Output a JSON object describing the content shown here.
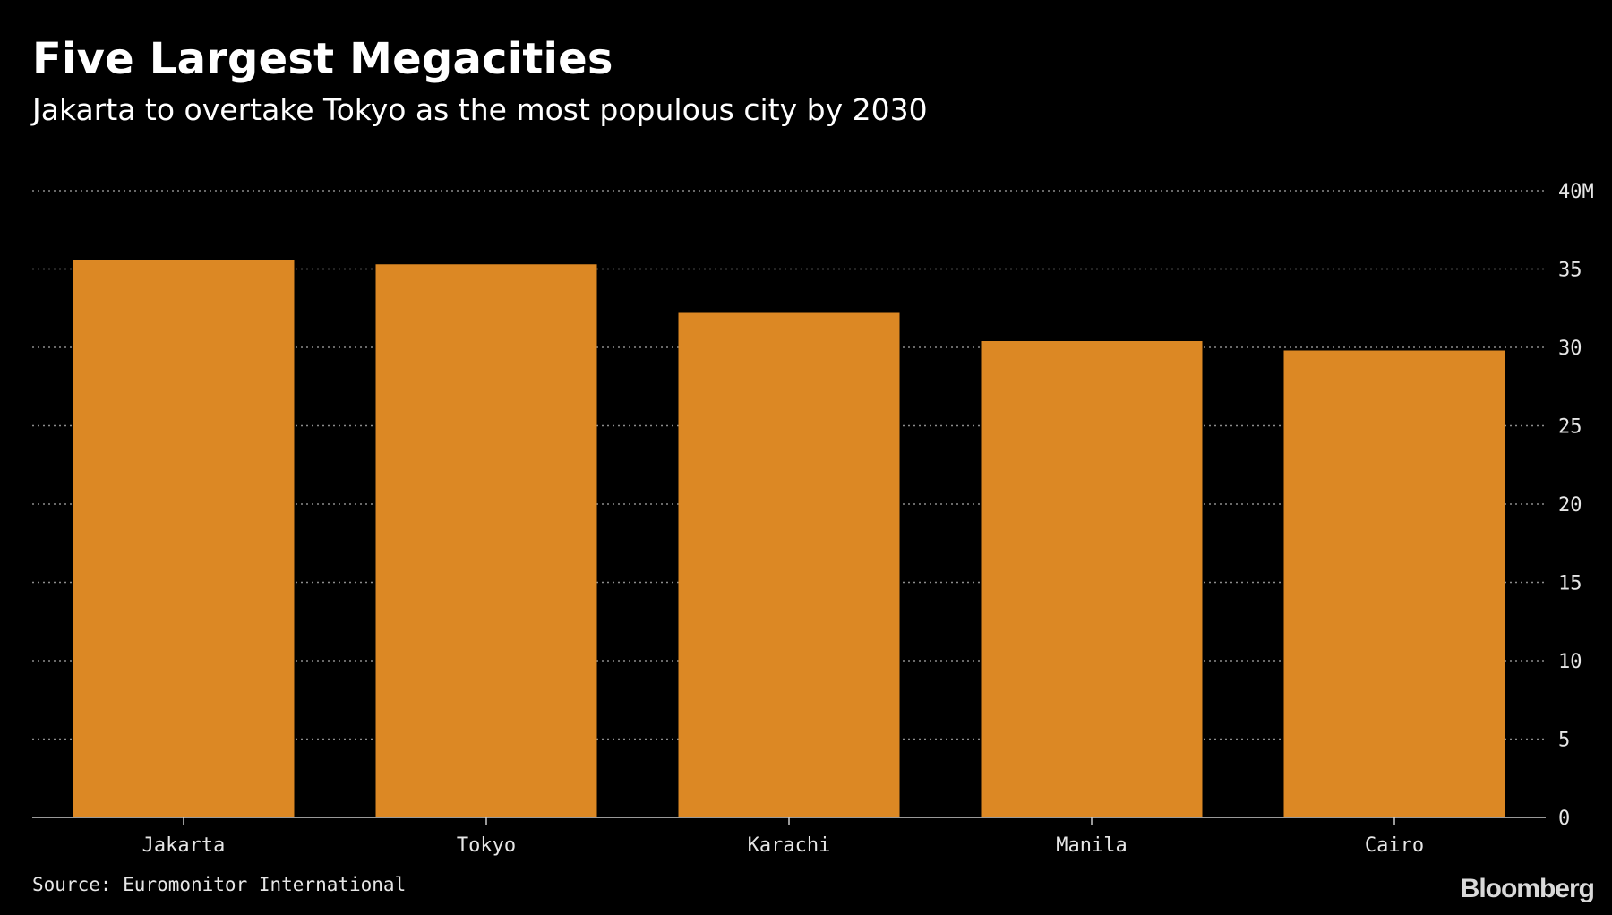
{
  "title": "Five Largest Megacities",
  "subtitle": "Jakarta to overtake Tokyo as the most populous city by 2030",
  "source": "Source: Euromonitor International",
  "brand": "Bloomberg",
  "colors": {
    "background": "#000000",
    "bar": "#dc8824",
    "grid": "#8c8c8c",
    "text": "#ffffff"
  },
  "chart_data": {
    "type": "bar",
    "title": "Five Largest Megacities",
    "subtitle": "Jakarta to overtake Tokyo as the most populous city by 2030",
    "categories": [
      "Jakarta",
      "Tokyo",
      "Karachi",
      "Manila",
      "Cairo"
    ],
    "values": [
      35.6,
      35.3,
      32.2,
      30.4,
      29.8
    ],
    "unit": "M",
    "ylim": [
      0,
      40
    ],
    "yticks": [
      0,
      5,
      10,
      15,
      20,
      25,
      30,
      35,
      40
    ],
    "ytick_labels": [
      "0",
      "5",
      "10",
      "15",
      "20",
      "25",
      "30",
      "35",
      "40M"
    ],
    "y_axis_side": "right",
    "grid": true,
    "grid_style": "dotted",
    "xlabel": "",
    "ylabel": ""
  }
}
